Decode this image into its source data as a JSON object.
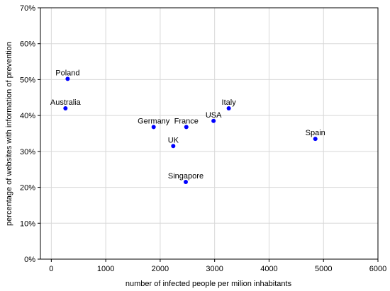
{
  "chart_data": {
    "type": "scatter",
    "title": "",
    "xlabel": "number of infected people per milion inhabitants",
    "ylabel": "percentage of websites with information of prevention",
    "xlim": [
      -200,
      6000
    ],
    "ylim": [
      0,
      70
    ],
    "x_ticks": [
      0,
      1000,
      2000,
      3000,
      4000,
      5000,
      6000
    ],
    "y_ticks": [
      0,
      10,
      20,
      30,
      40,
      50,
      60,
      70
    ],
    "y_tick_suffix": "%",
    "grid": true,
    "legend": "none",
    "marker_color": "#0000ff",
    "points": [
      {
        "label": "Poland",
        "x": 300,
        "y": 50.2
      },
      {
        "label": "Australia",
        "x": 260,
        "y": 42.0
      },
      {
        "label": "Germany",
        "x": 1880,
        "y": 36.8
      },
      {
        "label": "France",
        "x": 2480,
        "y": 36.8
      },
      {
        "label": "UK",
        "x": 2240,
        "y": 31.5
      },
      {
        "label": "Singapore",
        "x": 2470,
        "y": 21.5
      },
      {
        "label": "USA",
        "x": 2980,
        "y": 38.5
      },
      {
        "label": "Italy",
        "x": 3260,
        "y": 42.0
      },
      {
        "label": "Spain",
        "x": 4850,
        "y": 33.5
      }
    ]
  }
}
